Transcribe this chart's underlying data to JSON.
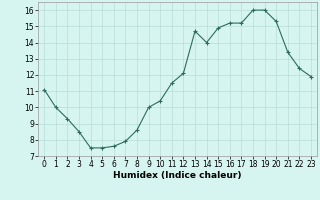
{
  "x": [
    0,
    1,
    2,
    3,
    4,
    5,
    6,
    7,
    8,
    9,
    10,
    11,
    12,
    13,
    14,
    15,
    16,
    17,
    18,
    19,
    20,
    21,
    22,
    23
  ],
  "y": [
    11.1,
    10.0,
    9.3,
    8.5,
    7.5,
    7.5,
    7.6,
    7.9,
    8.6,
    10.0,
    10.4,
    11.5,
    12.1,
    14.7,
    14.0,
    14.9,
    15.2,
    15.2,
    16.0,
    16.0,
    15.3,
    13.4,
    12.4,
    11.9
  ],
  "line_color": "#2d6b5e",
  "marker": "+",
  "marker_size": 3.0,
  "bg_color": "#d7f5f0",
  "grid_color": "#b8ddd8",
  "xlabel": "Humidex (Indice chaleur)",
  "xlim": [
    -0.5,
    23.5
  ],
  "ylim": [
    7,
    16.5
  ],
  "yticks": [
    7,
    8,
    9,
    10,
    11,
    12,
    13,
    14,
    15,
    16
  ],
  "xticks": [
    0,
    1,
    2,
    3,
    4,
    5,
    6,
    7,
    8,
    9,
    10,
    11,
    12,
    13,
    14,
    15,
    16,
    17,
    18,
    19,
    20,
    21,
    22,
    23
  ],
  "label_fontsize": 6.5,
  "tick_fontsize": 5.5,
  "linewidth": 0.8,
  "marker_linewidth": 0.8
}
